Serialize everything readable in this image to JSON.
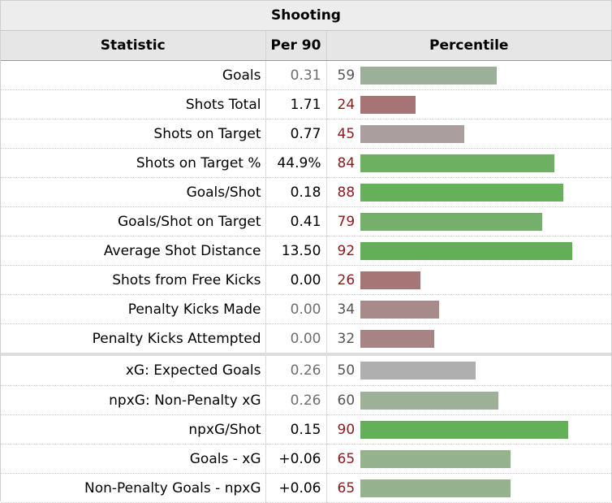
{
  "title": "Shooting",
  "headers": {
    "statistic": "Statistic",
    "per90": "Per 90",
    "percentile": "Percentile"
  },
  "rows": [
    {
      "stat": "Goals",
      "per90": "0.31",
      "per90_muted": true,
      "percentile": 59,
      "pct_color": "dark",
      "bar_color": "#9caf98"
    },
    {
      "stat": "Shots Total",
      "per90": "1.71",
      "per90_muted": false,
      "percentile": 24,
      "pct_color": "red",
      "bar_color": "#a67474"
    },
    {
      "stat": "Shots on Target",
      "per90": "0.77",
      "per90_muted": false,
      "percentile": 45,
      "pct_color": "red",
      "bar_color": "#aa9e9e"
    },
    {
      "stat": "Shots on Target %",
      "per90": "44.9%",
      "per90_muted": false,
      "percentile": 84,
      "pct_color": "red",
      "bar_color": "#6db062"
    },
    {
      "stat": "Goals/Shot",
      "per90": "0.18",
      "per90_muted": false,
      "percentile": 88,
      "pct_color": "red",
      "bar_color": "#66b05a"
    },
    {
      "stat": "Goals/Shot on Target",
      "per90": "0.41",
      "per90_muted": false,
      "percentile": 79,
      "pct_color": "red",
      "bar_color": "#74b06a"
    },
    {
      "stat": "Average Shot Distance",
      "per90": "13.50",
      "per90_muted": false,
      "percentile": 92,
      "pct_color": "red",
      "bar_color": "#62b056"
    },
    {
      "stat": "Shots from Free Kicks",
      "per90": "0.00",
      "per90_muted": false,
      "percentile": 26,
      "pct_color": "red",
      "bar_color": "#a67676"
    },
    {
      "stat": "Penalty Kicks Made",
      "per90": "0.00",
      "per90_muted": true,
      "percentile": 34,
      "pct_color": "dark",
      "bar_color": "#a78a8a"
    },
    {
      "stat": "Penalty Kicks Attempted",
      "per90": "0.00",
      "per90_muted": true,
      "percentile": 32,
      "pct_color": "dark",
      "bar_color": "#a78383"
    },
    {
      "stat": "xG: Expected Goals",
      "per90": "0.26",
      "per90_muted": true,
      "percentile": 50,
      "pct_color": "dark",
      "bar_color": "#afafaf"
    },
    {
      "stat": "npxG: Non-Penalty xG",
      "per90": "0.26",
      "per90_muted": true,
      "percentile": 60,
      "pct_color": "dark",
      "bar_color": "#9db199"
    },
    {
      "stat": "npxG/Shot",
      "per90": "0.15",
      "per90_muted": false,
      "percentile": 90,
      "pct_color": "red",
      "bar_color": "#64b058"
    },
    {
      "stat": "Goals - xG",
      "per90": "+0.06",
      "per90_muted": false,
      "percentile": 65,
      "pct_color": "red",
      "bar_color": "#94b38c"
    },
    {
      "stat": "Non-Penalty Goals - npxG",
      "per90": "+0.06",
      "per90_muted": false,
      "percentile": 65,
      "pct_color": "red",
      "bar_color": "#94b38c"
    }
  ]
}
